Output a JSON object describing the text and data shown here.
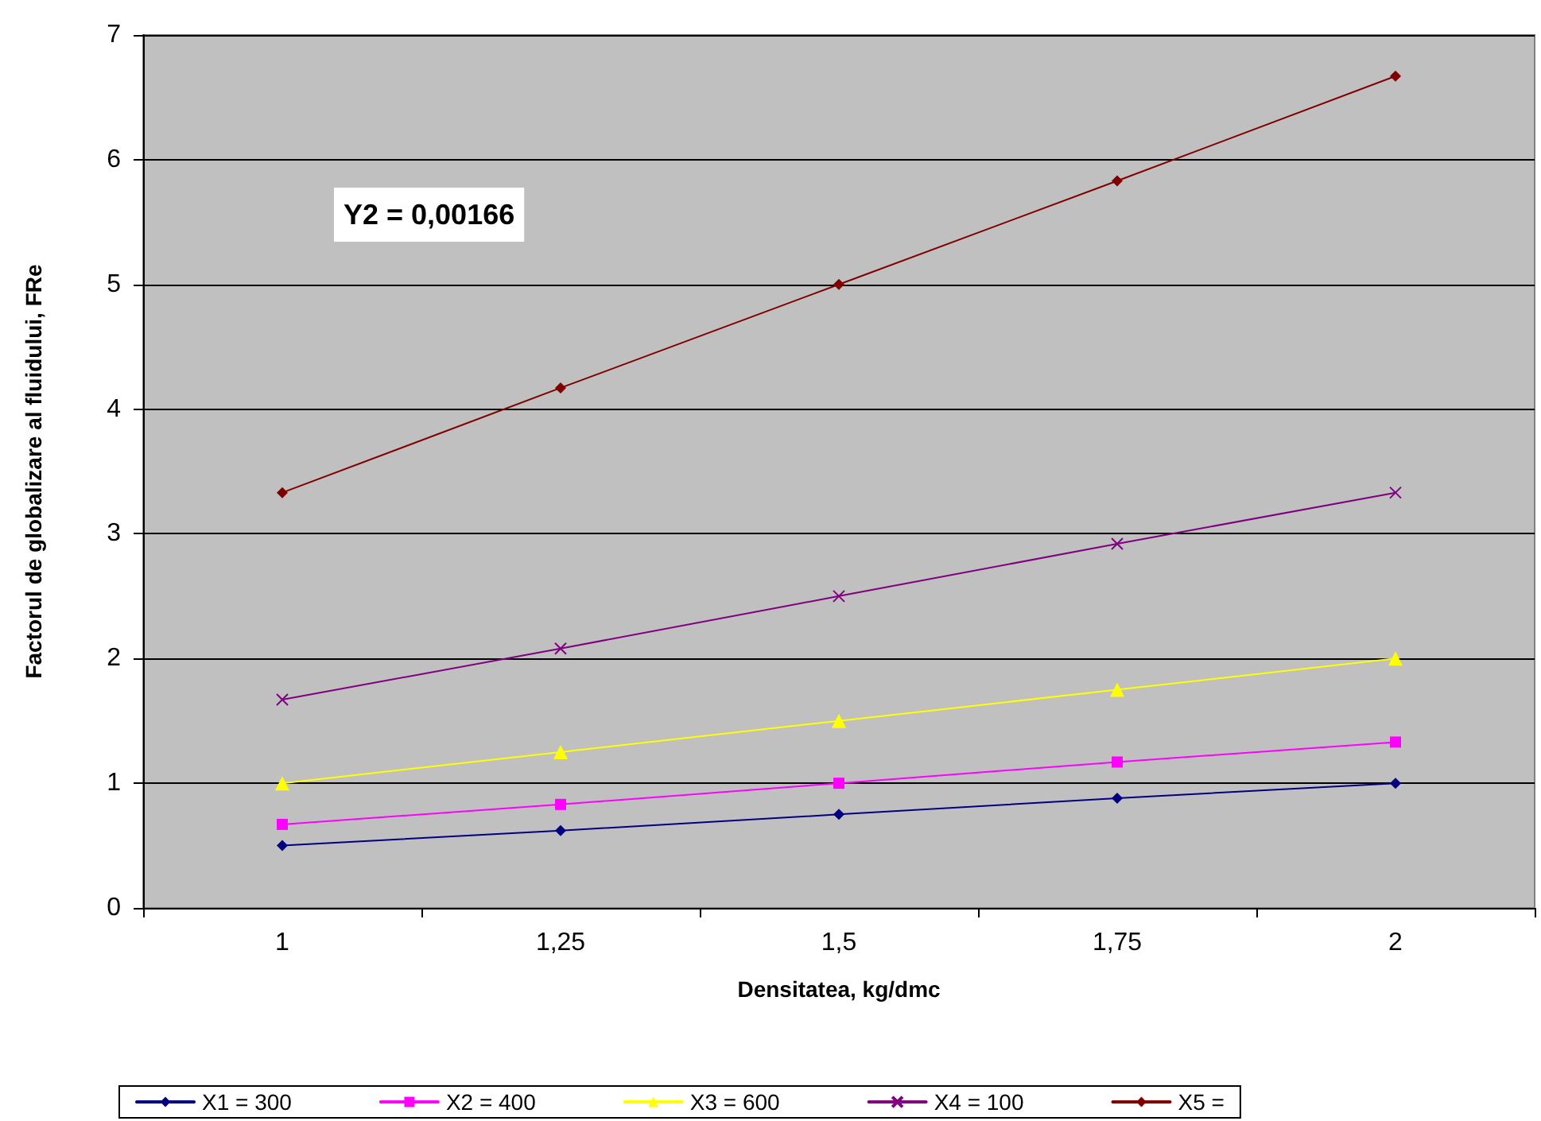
{
  "chart_data": {
    "type": "line",
    "xlabel": "Densitatea, kg/dmc",
    "ylabel": "Factorul de globalizare al fluidului, FRe",
    "categories": [
      "1",
      "1,25",
      "1,5",
      "1,75",
      "2"
    ],
    "series": [
      {
        "name": "X1 = 300",
        "color": "#000080",
        "marker": "diamond",
        "values": [
          0.5,
          0.62,
          0.75,
          0.88,
          1.0
        ]
      },
      {
        "name": "X2 = 400",
        "color": "#ff00ff",
        "marker": "square",
        "values": [
          0.67,
          0.83,
          1.0,
          1.17,
          1.33
        ]
      },
      {
        "name": "X3 = 600",
        "color": "#ffff00",
        "marker": "triangle",
        "values": [
          1.0,
          1.25,
          1.5,
          1.75,
          2.0
        ]
      },
      {
        "name": "X4 = 100",
        "color": "#800080",
        "marker": "cross",
        "values": [
          1.67,
          2.08,
          2.5,
          2.92,
          3.33
        ]
      },
      {
        "name": "X5 =",
        "color": "#800000",
        "marker": "diamond",
        "values": [
          3.33,
          4.17,
          5.0,
          5.83,
          6.67
        ]
      }
    ],
    "ylim": [
      0,
      7
    ],
    "yticks": [
      0,
      1,
      2,
      3,
      4,
      5,
      6,
      7
    ],
    "grid": "y",
    "legend": "bottom",
    "annotations": [
      "Y2 = 0,00166"
    ]
  }
}
